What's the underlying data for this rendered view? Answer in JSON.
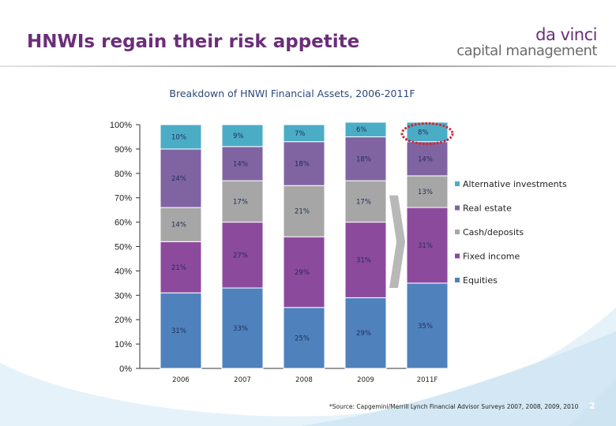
{
  "page": {
    "title": "HNWIs regain their risk appetite",
    "logo_line1": "da vinci",
    "logo_line2": "capital management",
    "source_note": "*Source: Capgemini/Merrill Lynch Financial Advisor Surveys 2007, 2008, 2009, 2010",
    "page_number": "2"
  },
  "colors": {
    "title": "#6b2e79",
    "chart_title": "#2b4a7a",
    "highlight_circle": "#d2232a",
    "arrow": "#b8b8b8"
  },
  "chart_data": {
    "type": "bar",
    "stacked": true,
    "title": "Breakdown of HNWI Financial Assets, 2006-2011F",
    "categories": [
      "2006",
      "2007",
      "2008",
      "2009",
      "2011F"
    ],
    "series": [
      {
        "name": "Equities",
        "color": "#4f81bd",
        "values": [
          31,
          33,
          25,
          29,
          35
        ],
        "labels": [
          "31%",
          "33%",
          "25%",
          "29%",
          "35%"
        ]
      },
      {
        "name": "Fixed income",
        "color": "#8c4a9c",
        "values": [
          21,
          27,
          29,
          31,
          31
        ],
        "labels": [
          "21%",
          "27%",
          "29%",
          "31%",
          "31%"
        ]
      },
      {
        "name": "Cash/deposits",
        "color": "#a6a6a6",
        "values": [
          14,
          17,
          21,
          17,
          13
        ],
        "labels": [
          "14%",
          "17%",
          "21%",
          "17%",
          "13%"
        ]
      },
      {
        "name": "Real estate",
        "color": "#8064a2",
        "values": [
          24,
          14,
          18,
          18,
          14
        ],
        "labels": [
          "24%",
          "14%",
          "18%",
          "18%",
          "14%"
        ]
      },
      {
        "name": "Alternative investments",
        "color": "#4bacc6",
        "values": [
          10,
          9,
          7,
          6,
          8
        ],
        "labels": [
          "10%",
          "9%",
          "7%",
          "6%",
          "8%"
        ]
      }
    ],
    "legend_order": [
      "Alternative investments",
      "Real estate",
      "Cash/deposits",
      "Fixed income",
      "Equities"
    ],
    "ylim": [
      0,
      100
    ],
    "yticks": [
      "0%",
      "10%",
      "20%",
      "30%",
      "40%",
      "50%",
      "60%",
      "70%",
      "80%",
      "90%",
      "100%"
    ],
    "legend_position": "right",
    "grid": false
  }
}
